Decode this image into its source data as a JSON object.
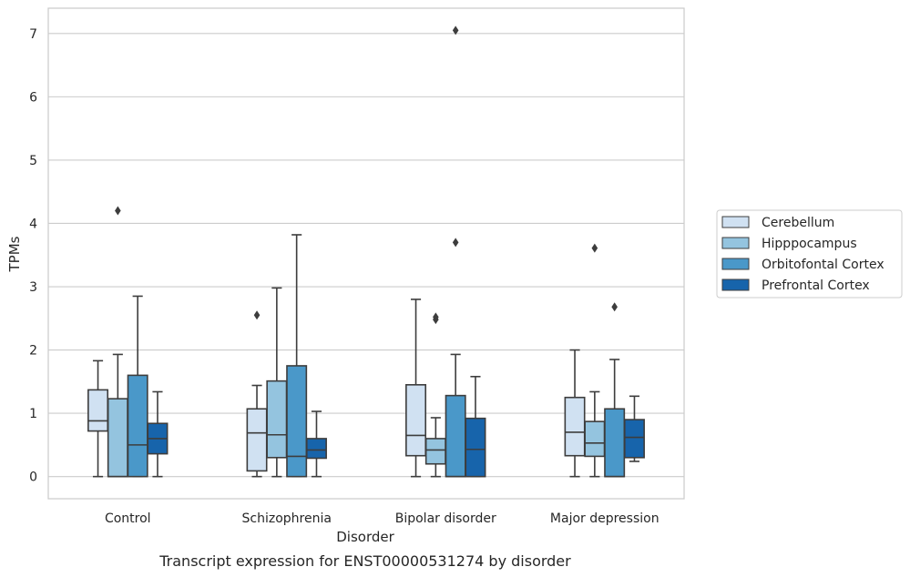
{
  "chart_data": {
    "type": "box",
    "caption": "Transcript expression for ENST00000531274 by disorder",
    "xlabel": "Disorder",
    "ylabel": "TPMs",
    "ylim": [
      -0.35,
      7.4
    ],
    "yticks": [
      0,
      1,
      2,
      3,
      4,
      5,
      6,
      7
    ],
    "grid": "horizontal",
    "legend_position": "right",
    "categories": [
      "Control",
      "Schizophrenia",
      "Bipolar disorder",
      "Major depression"
    ],
    "series": [
      {
        "name": "Cerebellum",
        "color": "#d0e1f2",
        "boxes": [
          {
            "whisker_low": 0,
            "q1": 0.72,
            "median": 0.88,
            "q3": 1.37,
            "whisker_high": 1.83,
            "outliers": []
          },
          {
            "whisker_low": 0,
            "q1": 0.09,
            "median": 0.69,
            "q3": 1.07,
            "whisker_high": 1.44,
            "outliers": [
              2.55
            ]
          },
          {
            "whisker_low": 0,
            "q1": 0.33,
            "median": 0.65,
            "q3": 1.45,
            "whisker_high": 2.8,
            "outliers": []
          },
          {
            "whisker_low": 0,
            "q1": 0.33,
            "median": 0.7,
            "q3": 1.25,
            "whisker_high": 2.0,
            "outliers": []
          }
        ]
      },
      {
        "name": "Hipppocampus",
        "color": "#94c4df",
        "boxes": [
          {
            "whisker_low": 0,
            "q1": 0,
            "median": 0,
            "q3": 1.23,
            "whisker_high": 1.93,
            "outliers": [
              4.2
            ]
          },
          {
            "whisker_low": 0,
            "q1": 0.3,
            "median": 0.66,
            "q3": 1.51,
            "whisker_high": 2.98,
            "outliers": []
          },
          {
            "whisker_low": 0,
            "q1": 0.2,
            "median": 0.42,
            "q3": 0.6,
            "whisker_high": 0.93,
            "outliers": [
              2.48,
              2.52
            ]
          },
          {
            "whisker_low": 0,
            "q1": 0.32,
            "median": 0.53,
            "q3": 0.87,
            "whisker_high": 1.34,
            "outliers": [
              3.61
            ]
          }
        ]
      },
      {
        "name": "Orbitofontal Cortex",
        "color": "#4a98c9",
        "boxes": [
          {
            "whisker_low": 0,
            "q1": 0,
            "median": 0.5,
            "q3": 1.6,
            "whisker_high": 2.85,
            "outliers": []
          },
          {
            "whisker_low": 0,
            "q1": 0,
            "median": 0.32,
            "q3": 1.75,
            "whisker_high": 3.82,
            "outliers": []
          },
          {
            "whisker_low": 0,
            "q1": 0,
            "median": 0,
            "q3": 1.28,
            "whisker_high": 1.93,
            "outliers": [
              3.7,
              7.05
            ]
          },
          {
            "whisker_low": 0,
            "q1": 0,
            "median": 0,
            "q3": 1.07,
            "whisker_high": 1.85,
            "outliers": [
              2.68
            ]
          }
        ]
      },
      {
        "name": "Prefrontal Cortex",
        "color": "#1764ab",
        "boxes": [
          {
            "whisker_low": 0,
            "q1": 0.36,
            "median": 0.6,
            "q3": 0.84,
            "whisker_high": 1.34,
            "outliers": []
          },
          {
            "whisker_low": 0,
            "q1": 0.29,
            "median": 0.42,
            "q3": 0.6,
            "whisker_high": 1.03,
            "outliers": []
          },
          {
            "whisker_low": 0,
            "q1": 0,
            "median": 0.43,
            "q3": 0.92,
            "whisker_high": 1.58,
            "outliers": []
          },
          {
            "whisker_low": 0.24,
            "q1": 0.3,
            "median": 0.62,
            "q3": 0.9,
            "whisker_high": 1.27,
            "outliers": []
          }
        ]
      }
    ]
  }
}
